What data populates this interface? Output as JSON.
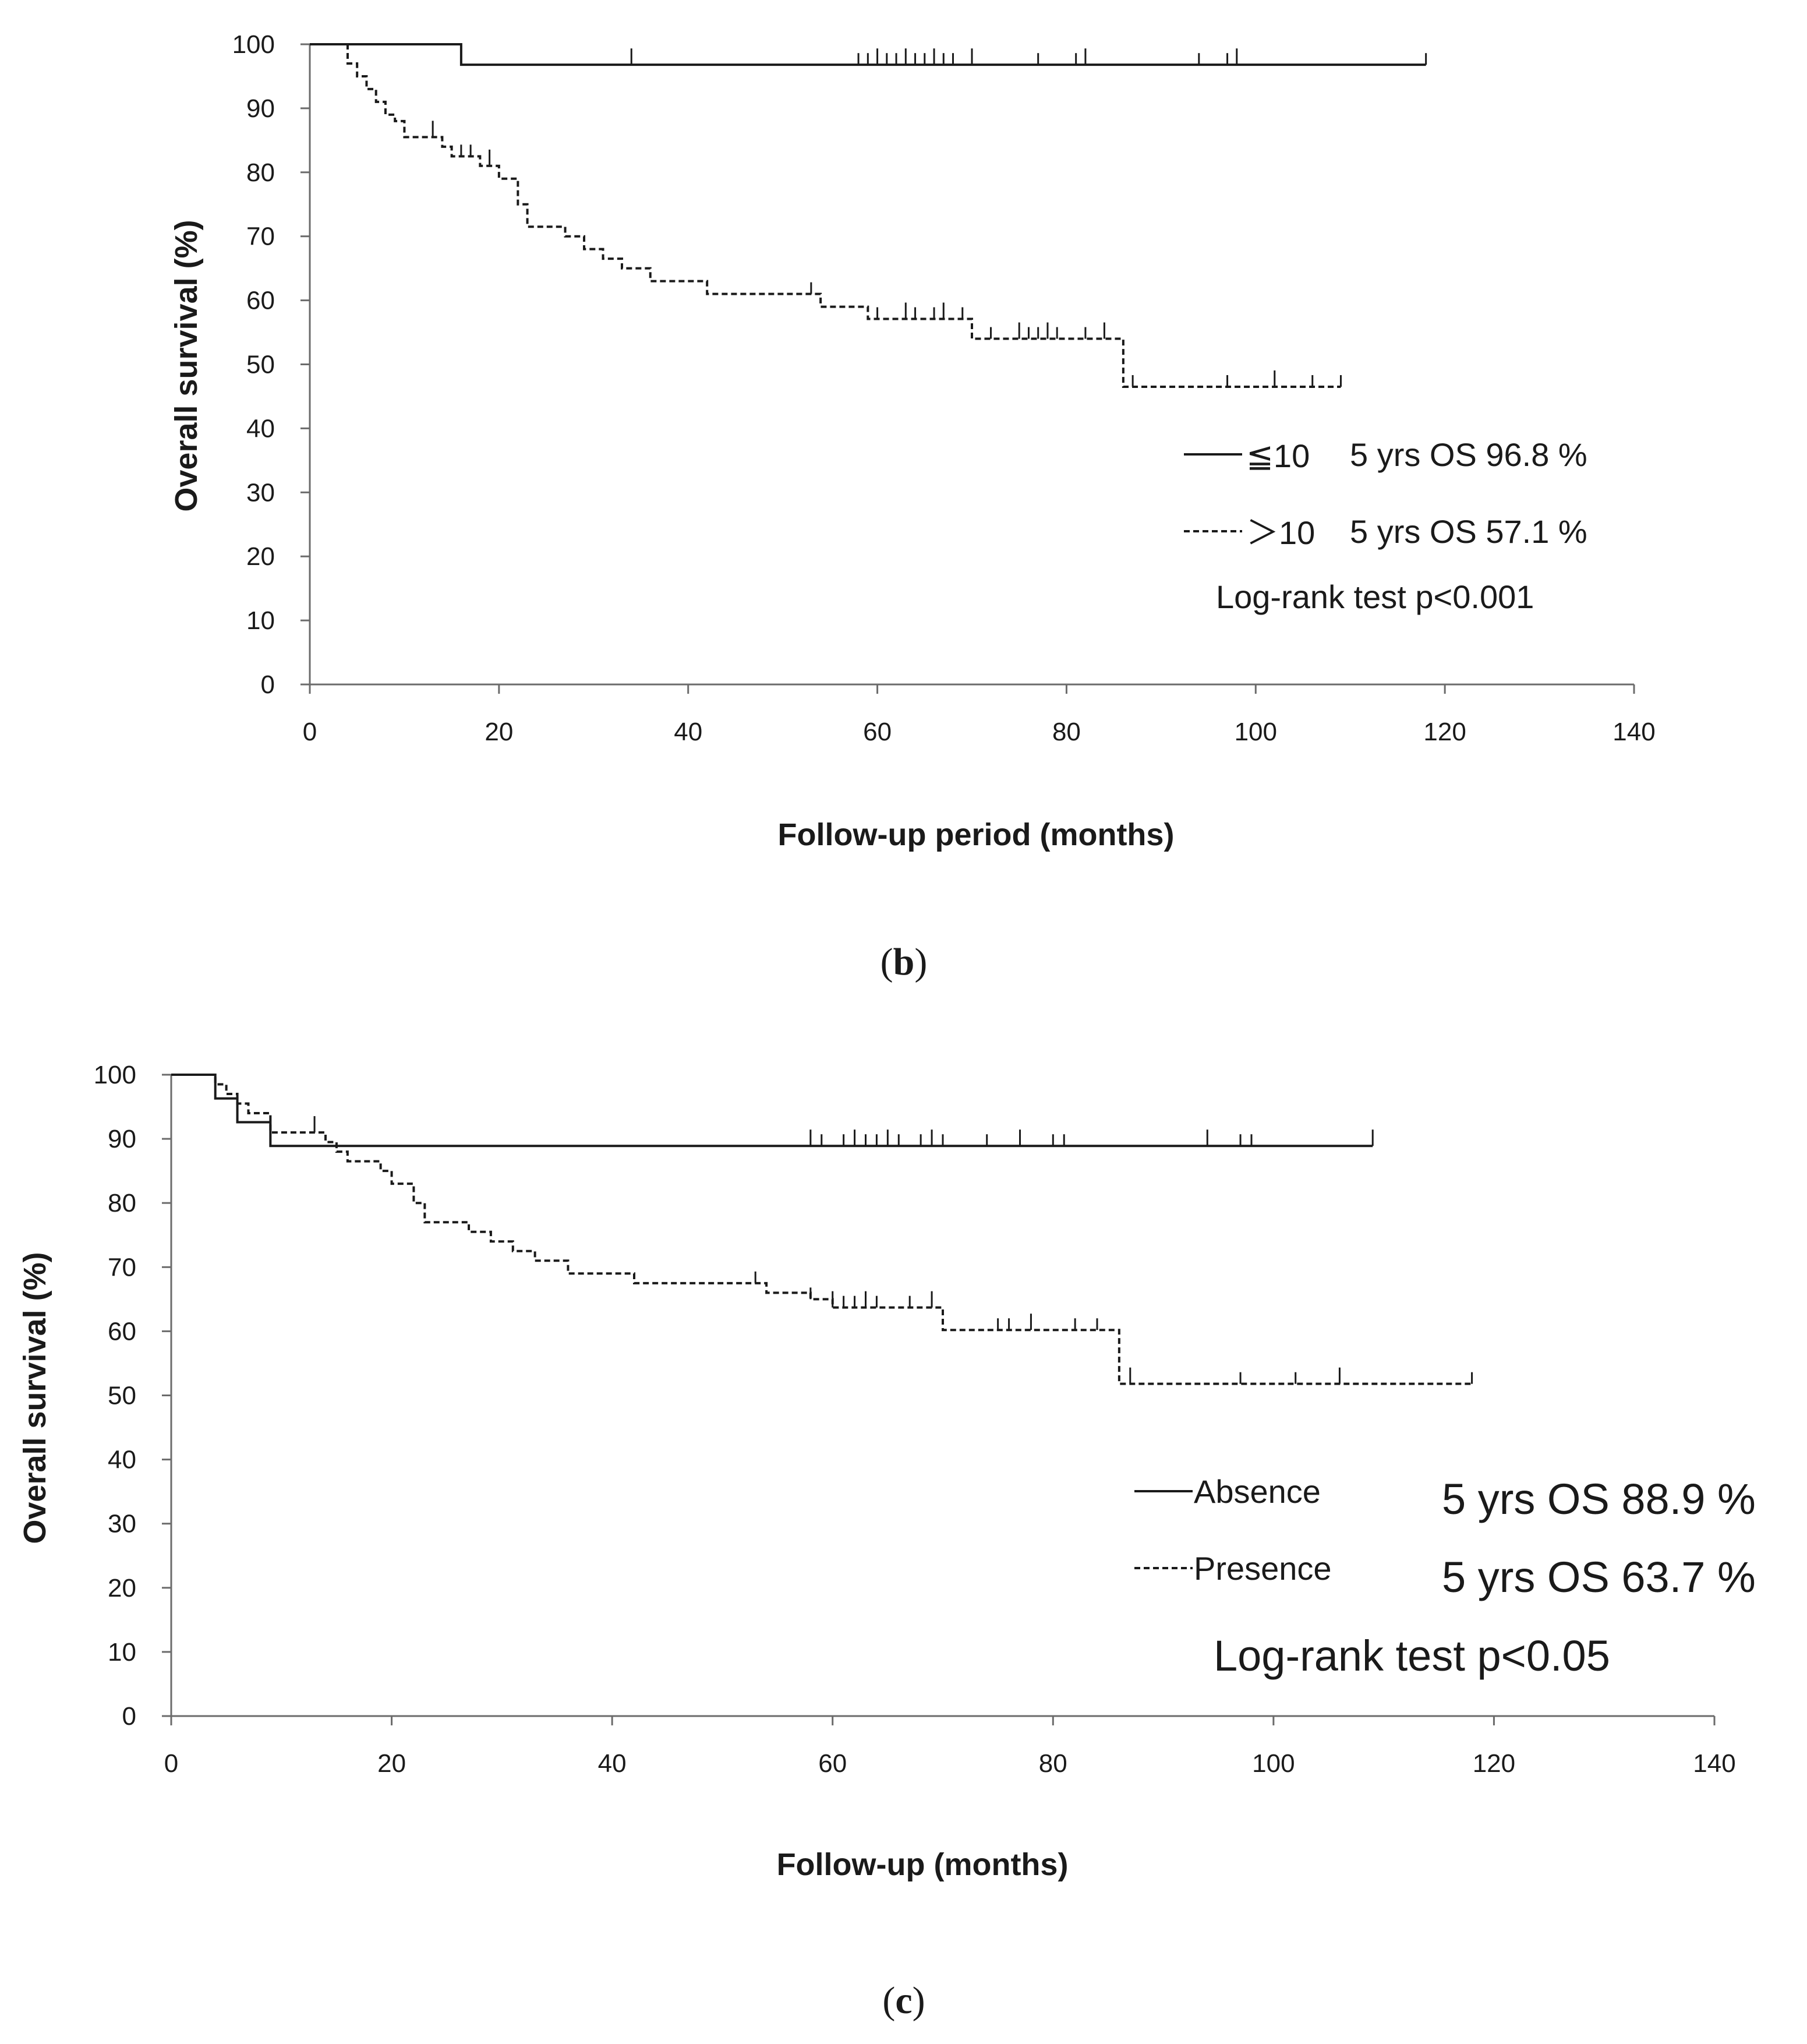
{
  "chart_data": [
    {
      "panel": "b",
      "type": "line",
      "subtype": "kaplan-meier",
      "xlabel": "Follow-up period (months)",
      "ylabel": "Overall survival (%)",
      "xlim": [
        0,
        140
      ],
      "ylim": [
        0,
        100
      ],
      "xticks": [
        0,
        20,
        40,
        60,
        80,
        100,
        120,
        140
      ],
      "yticks": [
        0,
        10,
        20,
        30,
        40,
        50,
        60,
        70,
        80,
        90,
        100
      ],
      "legend_placement": "right",
      "series": [
        {
          "name": "≦10",
          "style": "solid",
          "legend_label": "≦10",
          "os_label": "5 yrs OS 96.8 %",
          "steps": [
            [
              0,
              100
            ],
            [
              16,
              96.8
            ],
            [
              118,
              96.8
            ]
          ],
          "censors": [
            34,
            58,
            59,
            60,
            61,
            62,
            63,
            64,
            65,
            66,
            67,
            68,
            70,
            77,
            81,
            82,
            94,
            97,
            98,
            118
          ]
        },
        {
          "name": ">10",
          "style": "dashed",
          "legend_label": "＞10",
          "os_label": "5 yrs OS 57.1 %",
          "steps": [
            [
              0,
              100
            ],
            [
              4,
              97
            ],
            [
              5,
              95
            ],
            [
              6,
              93
            ],
            [
              7,
              91
            ],
            [
              8,
              89
            ],
            [
              9,
              88
            ],
            [
              10,
              85.5
            ],
            [
              14,
              84
            ],
            [
              15,
              82.5
            ],
            [
              18,
              81
            ],
            [
              20,
              79
            ],
            [
              22,
              75
            ],
            [
              23,
              71.5
            ],
            [
              27,
              70
            ],
            [
              29,
              68
            ],
            [
              31,
              66.5
            ],
            [
              33,
              65
            ],
            [
              36,
              63
            ],
            [
              42,
              61
            ],
            [
              54,
              59
            ],
            [
              59,
              57.1
            ],
            [
              70,
              54
            ],
            [
              86,
              46.5
            ],
            [
              109,
              46.5
            ]
          ],
          "censors": [
            13,
            16,
            17,
            19,
            53,
            60,
            63,
            64,
            66,
            67,
            69,
            72,
            75,
            76,
            77,
            78,
            79,
            82,
            84,
            87,
            97,
            102,
            106,
            109
          ]
        }
      ],
      "annotations": [
        "Log-rank test p<0.001"
      ]
    },
    {
      "panel": "c",
      "type": "line",
      "subtype": "kaplan-meier",
      "xlabel": "Follow-up (months)",
      "ylabel": "Overall survival (%)",
      "xlim": [
        0,
        140
      ],
      "ylim": [
        0,
        100
      ],
      "xticks": [
        0,
        20,
        40,
        60,
        80,
        100,
        120,
        140
      ],
      "yticks": [
        0,
        10,
        20,
        30,
        40,
        50,
        60,
        70,
        80,
        90,
        100
      ],
      "legend_placement": "right",
      "series": [
        {
          "name": "Absence",
          "style": "solid",
          "legend_label": "Absence",
          "os_label": "5 yrs OS 88.9 %",
          "steps": [
            [
              0,
              100
            ],
            [
              4,
              96.3
            ],
            [
              6,
              92.6
            ],
            [
              9,
              88.9
            ],
            [
              109,
              88.9
            ]
          ],
          "censors": [
            58,
            59,
            61,
            62,
            63,
            64,
            65,
            66,
            68,
            69,
            70,
            74,
            77,
            80,
            81,
            94,
            97,
            98,
            109
          ]
        },
        {
          "name": "Presence",
          "style": "dashed",
          "legend_label": "Presence",
          "os_label": "5 yrs OS 63.7 %",
          "steps": [
            [
              0,
              100
            ],
            [
              4,
              98.5
            ],
            [
              5,
              97
            ],
            [
              6,
              95.5
            ],
            [
              7,
              94
            ],
            [
              9,
              91
            ],
            [
              14,
              89.5
            ],
            [
              15,
              88
            ],
            [
              16,
              86.5
            ],
            [
              19,
              85
            ],
            [
              20,
              83
            ],
            [
              22,
              80
            ],
            [
              23,
              77
            ],
            [
              27,
              75.5
            ],
            [
              29,
              74
            ],
            [
              31,
              72.5
            ],
            [
              33,
              71
            ],
            [
              36,
              69
            ],
            [
              42,
              67.5
            ],
            [
              54,
              66
            ],
            [
              58,
              65
            ],
            [
              60,
              63.7
            ],
            [
              70,
              60.2
            ],
            [
              86,
              51.8
            ],
            [
              118,
              51.8
            ]
          ],
          "censors": [
            13,
            53,
            58,
            60,
            61,
            62,
            63,
            64,
            67,
            69,
            75,
            76,
            78,
            82,
            84,
            87,
            97,
            102,
            106,
            118
          ]
        }
      ],
      "annotations": [
        "Log-rank test p<0.05"
      ]
    }
  ],
  "panel_labels": {
    "b_open": "(",
    "b_letter": "b",
    "b_close": ")",
    "c_open": "(",
    "c_letter": "c",
    "c_close": ")"
  }
}
